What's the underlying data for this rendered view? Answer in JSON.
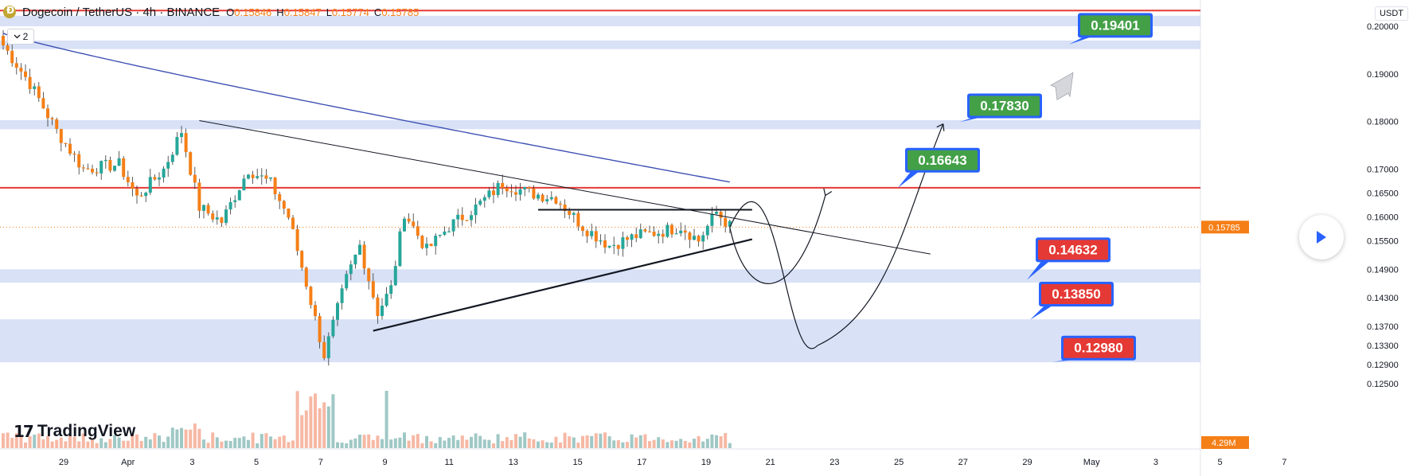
{
  "header": {
    "symbol": "Dogecoin / TetherUS · 4h · BINANCE",
    "ohlc": [
      {
        "key": "O",
        "value": "0.15846"
      },
      {
        "key": "H",
        "value": "0.15847"
      },
      {
        "key": "L",
        "value": "0.15774"
      },
      {
        "key": "C",
        "value": "0.15785"
      }
    ],
    "indicators_toggle": "2",
    "currency": "USDT"
  },
  "branding": {
    "logo_text": "TradingView",
    "logo_mark": "17"
  },
  "colors": {
    "up": "#26a69a",
    "down": "#f57f17",
    "zone": "#d1dcf5",
    "resistance": "#e53935",
    "ma": "#3f51b5",
    "target_green": "#43a047",
    "target_red": "#e53935",
    "label_box": "#2962ff"
  },
  "chart_data": {
    "type": "candlestick",
    "title": "Dogecoin / TetherUS · 4h · BINANCE",
    "y_axis": {
      "ylim": [
        0.1235,
        0.204
      ],
      "ticks": [
        "0.20000",
        "0.19000",
        "0.18000",
        "0.17000",
        "0.16500",
        "0.16000",
        "0.15500",
        "0.14900",
        "0.14300",
        "0.13700",
        "0.13300",
        "0.12900",
        "0.12500"
      ]
    },
    "x_axis": {
      "tick_labels": [
        "29",
        "Apr",
        "3",
        "5",
        "7",
        "9",
        "11",
        "13",
        "15",
        "17",
        "19",
        "21",
        "23",
        "25",
        "27",
        "29",
        "May",
        "3",
        "5",
        "7"
      ]
    },
    "current_price": "0.15785",
    "volume_label": "4.29M",
    "price_anchors": [
      {
        "x": 0,
        "close": 0.196
      },
      {
        "x": 6,
        "close": 0.188
      },
      {
        "x": 12,
        "close": 0.178
      },
      {
        "x": 18,
        "close": 0.17
      },
      {
        "x": 26,
        "close": 0.171
      },
      {
        "x": 30,
        "close": 0.164
      },
      {
        "x": 36,
        "close": 0.17
      },
      {
        "x": 40,
        "close": 0.178
      },
      {
        "x": 44,
        "close": 0.162
      },
      {
        "x": 49,
        "close": 0.159
      },
      {
        "x": 55,
        "close": 0.17
      },
      {
        "x": 60,
        "close": 0.167
      },
      {
        "x": 64,
        "close": 0.16
      },
      {
        "x": 68,
        "close": 0.146
      },
      {
        "x": 72,
        "close": 0.131
      },
      {
        "x": 77,
        "close": 0.147
      },
      {
        "x": 80,
        "close": 0.154
      },
      {
        "x": 84,
        "close": 0.14
      },
      {
        "x": 87,
        "close": 0.145
      },
      {
        "x": 90,
        "close": 0.161
      },
      {
        "x": 95,
        "close": 0.153
      },
      {
        "x": 100,
        "close": 0.158
      },
      {
        "x": 106,
        "close": 0.162
      },
      {
        "x": 112,
        "close": 0.167
      },
      {
        "x": 118,
        "close": 0.165
      },
      {
        "x": 124,
        "close": 0.164
      },
      {
        "x": 130,
        "close": 0.158
      },
      {
        "x": 136,
        "close": 0.154
      },
      {
        "x": 142,
        "close": 0.156
      },
      {
        "x": 148,
        "close": 0.157
      },
      {
        "x": 152,
        "close": 0.158
      },
      {
        "x": 156,
        "close": 0.155
      },
      {
        "x": 160,
        "close": 0.161
      },
      {
        "x": 163,
        "close": 0.158
      }
    ],
    "candle_count": 164,
    "zones": [
      {
        "from": 0.2022,
        "to": 0.2
      },
      {
        "from": 0.197,
        "to": 0.1952
      },
      {
        "from": 0.1803,
        "to": 0.1784
      },
      {
        "from": 0.149,
        "to": 0.1462
      },
      {
        "from": 0.1385,
        "to": 0.1295
      }
    ],
    "resistance_lines": [
      0.2033,
      0.1661
    ],
    "current_line": 0.15785,
    "pattern": {
      "type": "symmetrical triangle",
      "upper": {
        "x1": 44,
        "y1": 0.1802,
        "x2": 208,
        "y2": 0.1522
      },
      "lower": {
        "x1": 83,
        "y1": 0.1361,
        "x2": 168,
        "y2": 0.1553
      },
      "box_line": {
        "x1": 120,
        "x2": 168,
        "y": 0.1615
      }
    },
    "targets": [
      {
        "label": "0.19401",
        "kind": "up"
      },
      {
        "label": "0.17830",
        "kind": "up"
      },
      {
        "label": "0.16643",
        "kind": "up"
      },
      {
        "label": "0.14632",
        "kind": "down"
      },
      {
        "label": "0.13850",
        "kind": "down"
      },
      {
        "label": "0.12980",
        "kind": "down"
      }
    ]
  }
}
